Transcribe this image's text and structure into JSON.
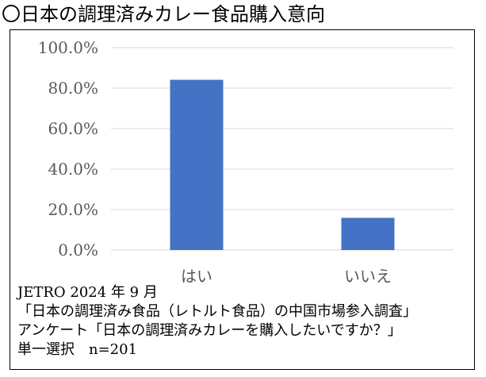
{
  "title": "〇日本の調理済みカレー食品購入意向",
  "chart_data": {
    "type": "bar",
    "categories": [
      "はい",
      "いいえ"
    ],
    "values": [
      84.1,
      15.9
    ],
    "ylim": [
      0,
      100
    ],
    "yticks": [
      "0.0%",
      "20.0%",
      "40.0%",
      "60.0%",
      "80.0%",
      "100.0%"
    ],
    "grid": true,
    "bar_color": "#4472C4",
    "grid_color": "#D9D9D9"
  },
  "notes": {
    "line1": "JETRO 2024 年 9 月",
    "line2": "「日本の調理済み食品（レトルト食品）の中国市場参入調査」",
    "line3": "アンケート「日本の調理済みカレーを購入したいですか？」",
    "line4": "単一選択　n=201"
  }
}
